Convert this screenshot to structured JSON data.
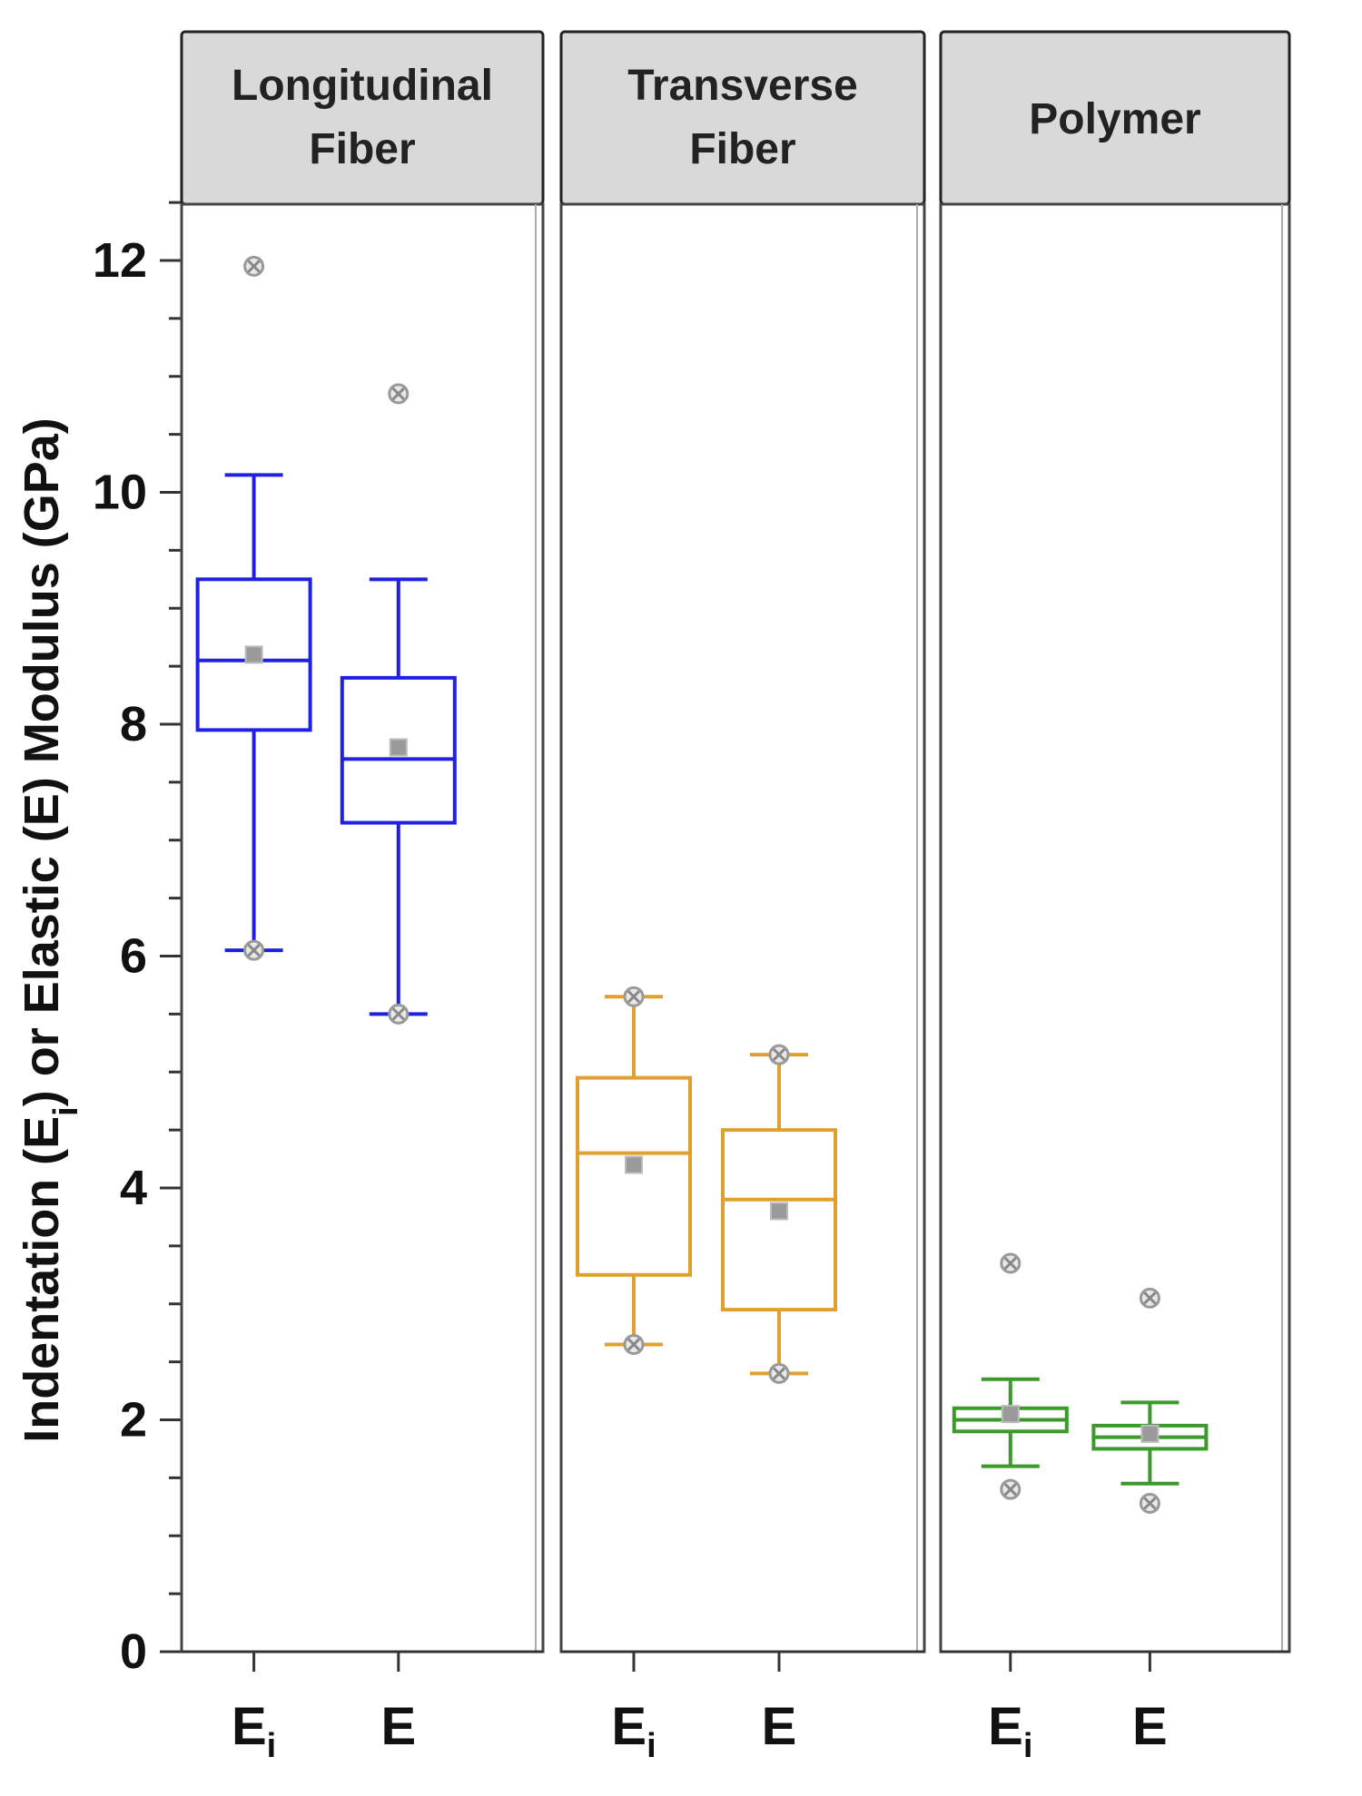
{
  "chart_data": {
    "type": "box",
    "ylabel_parts": [
      "Indentation (E",
      "i",
      ") or Elastic (E) Modulus (GPa)"
    ],
    "ylim": [
      0,
      12.5
    ],
    "yticks": [
      "0",
      "2",
      "4",
      "6",
      "8",
      "10",
      "12"
    ],
    "ytick_values": [
      0,
      2,
      4,
      6,
      8,
      10,
      12
    ],
    "minor_tick_step": 0.5,
    "grid": false,
    "panels": [
      {
        "title_lines": [
          "Longitudinal",
          "Fiber"
        ],
        "color": "#2020e0",
        "boxes": [
          {
            "label": "E",
            "sub": "i",
            "whisker_low": 6.05,
            "q1": 7.95,
            "median": 8.55,
            "q3": 9.25,
            "whisker_high": 10.15,
            "mean": 8.6,
            "min_mark": 6.05,
            "max_mark": null,
            "outliers": [
              11.95
            ]
          },
          {
            "label": "E",
            "sub": "",
            "whisker_low": 5.5,
            "q1": 7.15,
            "median": 7.7,
            "q3": 8.4,
            "whisker_high": 9.25,
            "mean": 7.8,
            "min_mark": 5.5,
            "max_mark": null,
            "outliers": [
              10.85
            ]
          }
        ]
      },
      {
        "title_lines": [
          "Transverse",
          "Fiber"
        ],
        "color": "#e0a030",
        "boxes": [
          {
            "label": "E",
            "sub": "i",
            "whisker_low": 2.65,
            "q1": 3.25,
            "median": 4.3,
            "q3": 4.95,
            "whisker_high": 5.65,
            "mean": 4.2,
            "min_mark": 2.65,
            "max_mark": 5.65,
            "outliers": []
          },
          {
            "label": "E",
            "sub": "",
            "whisker_low": 2.4,
            "q1": 2.95,
            "median": 3.9,
            "q3": 4.5,
            "whisker_high": 5.15,
            "mean": 3.8,
            "min_mark": 2.4,
            "max_mark": 5.15,
            "outliers": []
          }
        ]
      },
      {
        "title_lines": [
          "Polymer"
        ],
        "color": "#3a9a2a",
        "boxes": [
          {
            "label": "E",
            "sub": "i",
            "whisker_low": 1.6,
            "q1": 1.9,
            "median": 2.0,
            "q3": 2.1,
            "whisker_high": 2.35,
            "mean": 2.05,
            "min_mark": null,
            "max_mark": null,
            "outliers": [
              1.4,
              3.35
            ]
          },
          {
            "label": "E",
            "sub": "",
            "whisker_low": 1.45,
            "q1": 1.75,
            "median": 1.85,
            "q3": 1.95,
            "whisker_high": 2.15,
            "mean": 1.88,
            "min_mark": null,
            "max_mark": null,
            "outliers": [
              1.28,
              3.05
            ]
          }
        ]
      }
    ]
  }
}
